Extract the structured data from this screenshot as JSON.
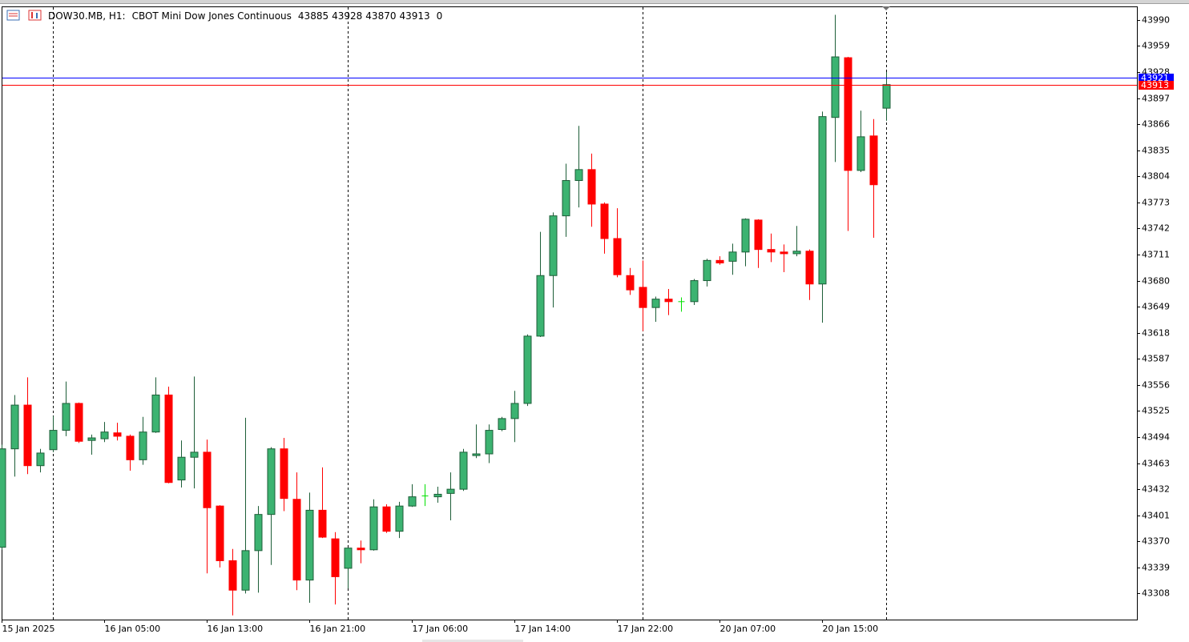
{
  "chart_data": {
    "type": "candlestick",
    "symbol": "DOW30.MB, H1:",
    "description": "CBOT Mini Dow Jones Continuous",
    "spread": 0,
    "categories": [
      "15 Jan 2025",
      null,
      null,
      null,
      null,
      null,
      null,
      null,
      "16 Jan 05:00",
      null,
      null,
      null,
      null,
      null,
      null,
      null,
      "16 Jan 13:00",
      null,
      null,
      null,
      null,
      null,
      null,
      null,
      "16 Jan 21:00",
      null,
      null,
      null,
      null,
      null,
      null,
      null,
      "17 Jan 06:00",
      null,
      null,
      null,
      null,
      null,
      null,
      null,
      "17 Jan 14:00",
      null,
      null,
      null,
      null,
      null,
      null,
      null,
      "17 Jan 22:00",
      null,
      null,
      null,
      null,
      null,
      null,
      null,
      "20 Jan 07:00",
      null,
      null,
      null,
      null,
      null,
      null,
      null,
      "20 Jan 15:00",
      null,
      null,
      null,
      null,
      null
    ],
    "open": [
      43363,
      43480,
      43532,
      43460,
      43479,
      43502,
      43534,
      43490,
      43492,
      43499,
      43495,
      43467,
      43500,
      43544,
      43443,
      43470,
      43476,
      43412,
      43347,
      43312,
      43359,
      43402,
      43480,
      43420,
      43324,
      43407,
      43373,
      43338,
      43362,
      43360,
      43411,
      43382,
      43412,
      43424,
      43423,
      43427,
      43432,
      43472,
      43474,
      43503,
      43516,
      43534,
      43614,
      43686,
      43757,
      43799,
      43812,
      43771,
      43730,
      43686,
      43672,
      43648,
      43658,
      43655,
      43655,
      43680,
      43704,
      43703,
      43714,
      43752,
      43717,
      43714,
      43712,
      43715,
      43676,
      43874,
      43945,
      43811,
      43852,
      43885
    ],
    "high": [
      43485,
      43544,
      43565,
      43480,
      43519,
      43560,
      43535,
      43497,
      43512,
      43511,
      43497,
      43518,
      43565,
      43554,
      43490,
      43566,
      43491,
      43413,
      43361,
      43517,
      43412,
      43482,
      43493,
      43452,
      43428,
      43458,
      43381,
      43363,
      43371,
      43420,
      43414,
      43417,
      43438,
      43438,
      43435,
      43452,
      43480,
      43509,
      43509,
      43518,
      43549,
      43616,
      43738,
      43761,
      43819,
      43864,
      43831,
      43773,
      43766,
      43695,
      43704,
      43661,
      43670,
      43660,
      43682,
      43706,
      43709,
      43724,
      43754,
      43753,
      43736,
      43723,
      43745,
      43717,
      43881,
      43996,
      43946,
      43882,
      43872,
      43928
    ],
    "low": [
      43360,
      43447,
      43450,
      43452,
      43476,
      43495,
      43487,
      43473,
      43488,
      43490,
      43454,
      43461,
      43499,
      43439,
      43434,
      43433,
      43332,
      43339,
      43282,
      43308,
      43309,
      43342,
      43406,
      43312,
      43297,
      43374,
      43295,
      43314,
      43344,
      43359,
      43380,
      43374,
      43411,
      43412,
      43416,
      43395,
      43430,
      43469,
      43463,
      43501,
      43488,
      43531,
      43613,
      43648,
      43732,
      43767,
      43744,
      43712,
      43684,
      43663,
      43620,
      43631,
      43639,
      43643,
      43651,
      43673,
      43699,
      43687,
      43697,
      43695,
      43702,
      43690,
      43709,
      43657,
      43630,
      43821,
      43739,
      43809,
      43731,
      43870
    ],
    "close": [
      43480,
      43532,
      43460,
      43475,
      43502,
      43534,
      43489,
      43493,
      43500,
      43495,
      43467,
      43500,
      43544,
      43440,
      43470,
      43476,
      43410,
      43347,
      43312,
      43359,
      43402,
      43480,
      43421,
      43324,
      43407,
      43375,
      43328,
      43362,
      43360,
      43411,
      43382,
      43412,
      43423,
      43424,
      43426,
      43432,
      43476,
      43474,
      43502,
      43516,
      43534,
      43614,
      43686,
      43757,
      43799,
      43812,
      43771,
      43730,
      43687,
      43669,
      43648,
      43658,
      43655,
      43655,
      43680,
      43704,
      43701,
      43714,
      43753,
      43717,
      43714,
      43712,
      43715,
      43676,
      43875,
      43946,
      43811,
      43851,
      43794,
      43913
    ],
    "up_color": "#3cb371",
    "up_border": "#1d5e38",
    "down_color": "#ff0000",
    "doji_color": "#00e000",
    "ask": 43921,
    "ask_color": "#0000ff",
    "bid": 43913,
    "bid_color": "#ff0000",
    "ylim": [
      43277,
      44006
    ],
    "yticks": [
      43308,
      43339,
      43370,
      43401,
      43432,
      43463,
      43494,
      43525,
      43556,
      43587,
      43618,
      43649,
      43680,
      43711,
      43742,
      43773,
      43804,
      43835,
      43866,
      43897,
      43928,
      43959,
      43990
    ]
  }
}
